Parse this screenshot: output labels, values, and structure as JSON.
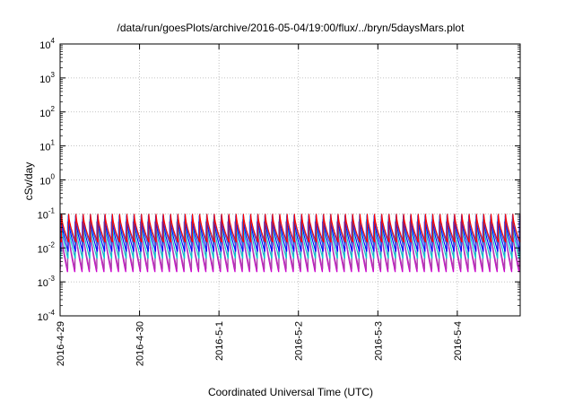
{
  "chart_data": {
    "type": "line",
    "title": "/data/run/goesPlots/archive/2016-05-04/19:00/flux/../bryn/5daysMars.plot",
    "xlabel": "Coordinated Universal Time (UTC)",
    "ylabel": "cSv/day",
    "y_scale": "log",
    "ylim": [
      0.0001,
      10000
    ],
    "y_ticks": [
      {
        "base": "10",
        "exp": "-4"
      },
      {
        "base": "10",
        "exp": "-3"
      },
      {
        "base": "10",
        "exp": "-2"
      },
      {
        "base": "10",
        "exp": "-1"
      },
      {
        "base": "10",
        "exp": "0"
      },
      {
        "base": "10",
        "exp": "1"
      },
      {
        "base": "10",
        "exp": "2"
      },
      {
        "base": "10",
        "exp": "3"
      },
      {
        "base": "10",
        "exp": "4"
      }
    ],
    "x_range": [
      "2016-04-29",
      "2016-05-04 19:00"
    ],
    "x_ticks": [
      "2016-4-29",
      "2016-4-30",
      "2016-5-1",
      "2016-5-2",
      "2016-5-3",
      "2016-5-4"
    ],
    "grid": true,
    "legend": "none",
    "cycle_hours": 2.2,
    "series": [
      {
        "color": "#ff00ff",
        "peak": 0.05,
        "base": 0.0015
      },
      {
        "color": "#cc00cc",
        "peak": 0.06,
        "base": 0.002
      },
      {
        "color": "#aa44aa",
        "peak": 0.055,
        "base": 0.0025
      },
      {
        "color": "#00cccc",
        "peak": 0.07,
        "base": 0.005
      },
      {
        "color": "#0000ff",
        "peak": 0.09,
        "base": 0.008
      },
      {
        "color": "#2266dd",
        "peak": 0.1,
        "base": 0.012
      },
      {
        "color": "#ff0000",
        "peak": 0.1,
        "base": 0.015
      }
    ]
  }
}
